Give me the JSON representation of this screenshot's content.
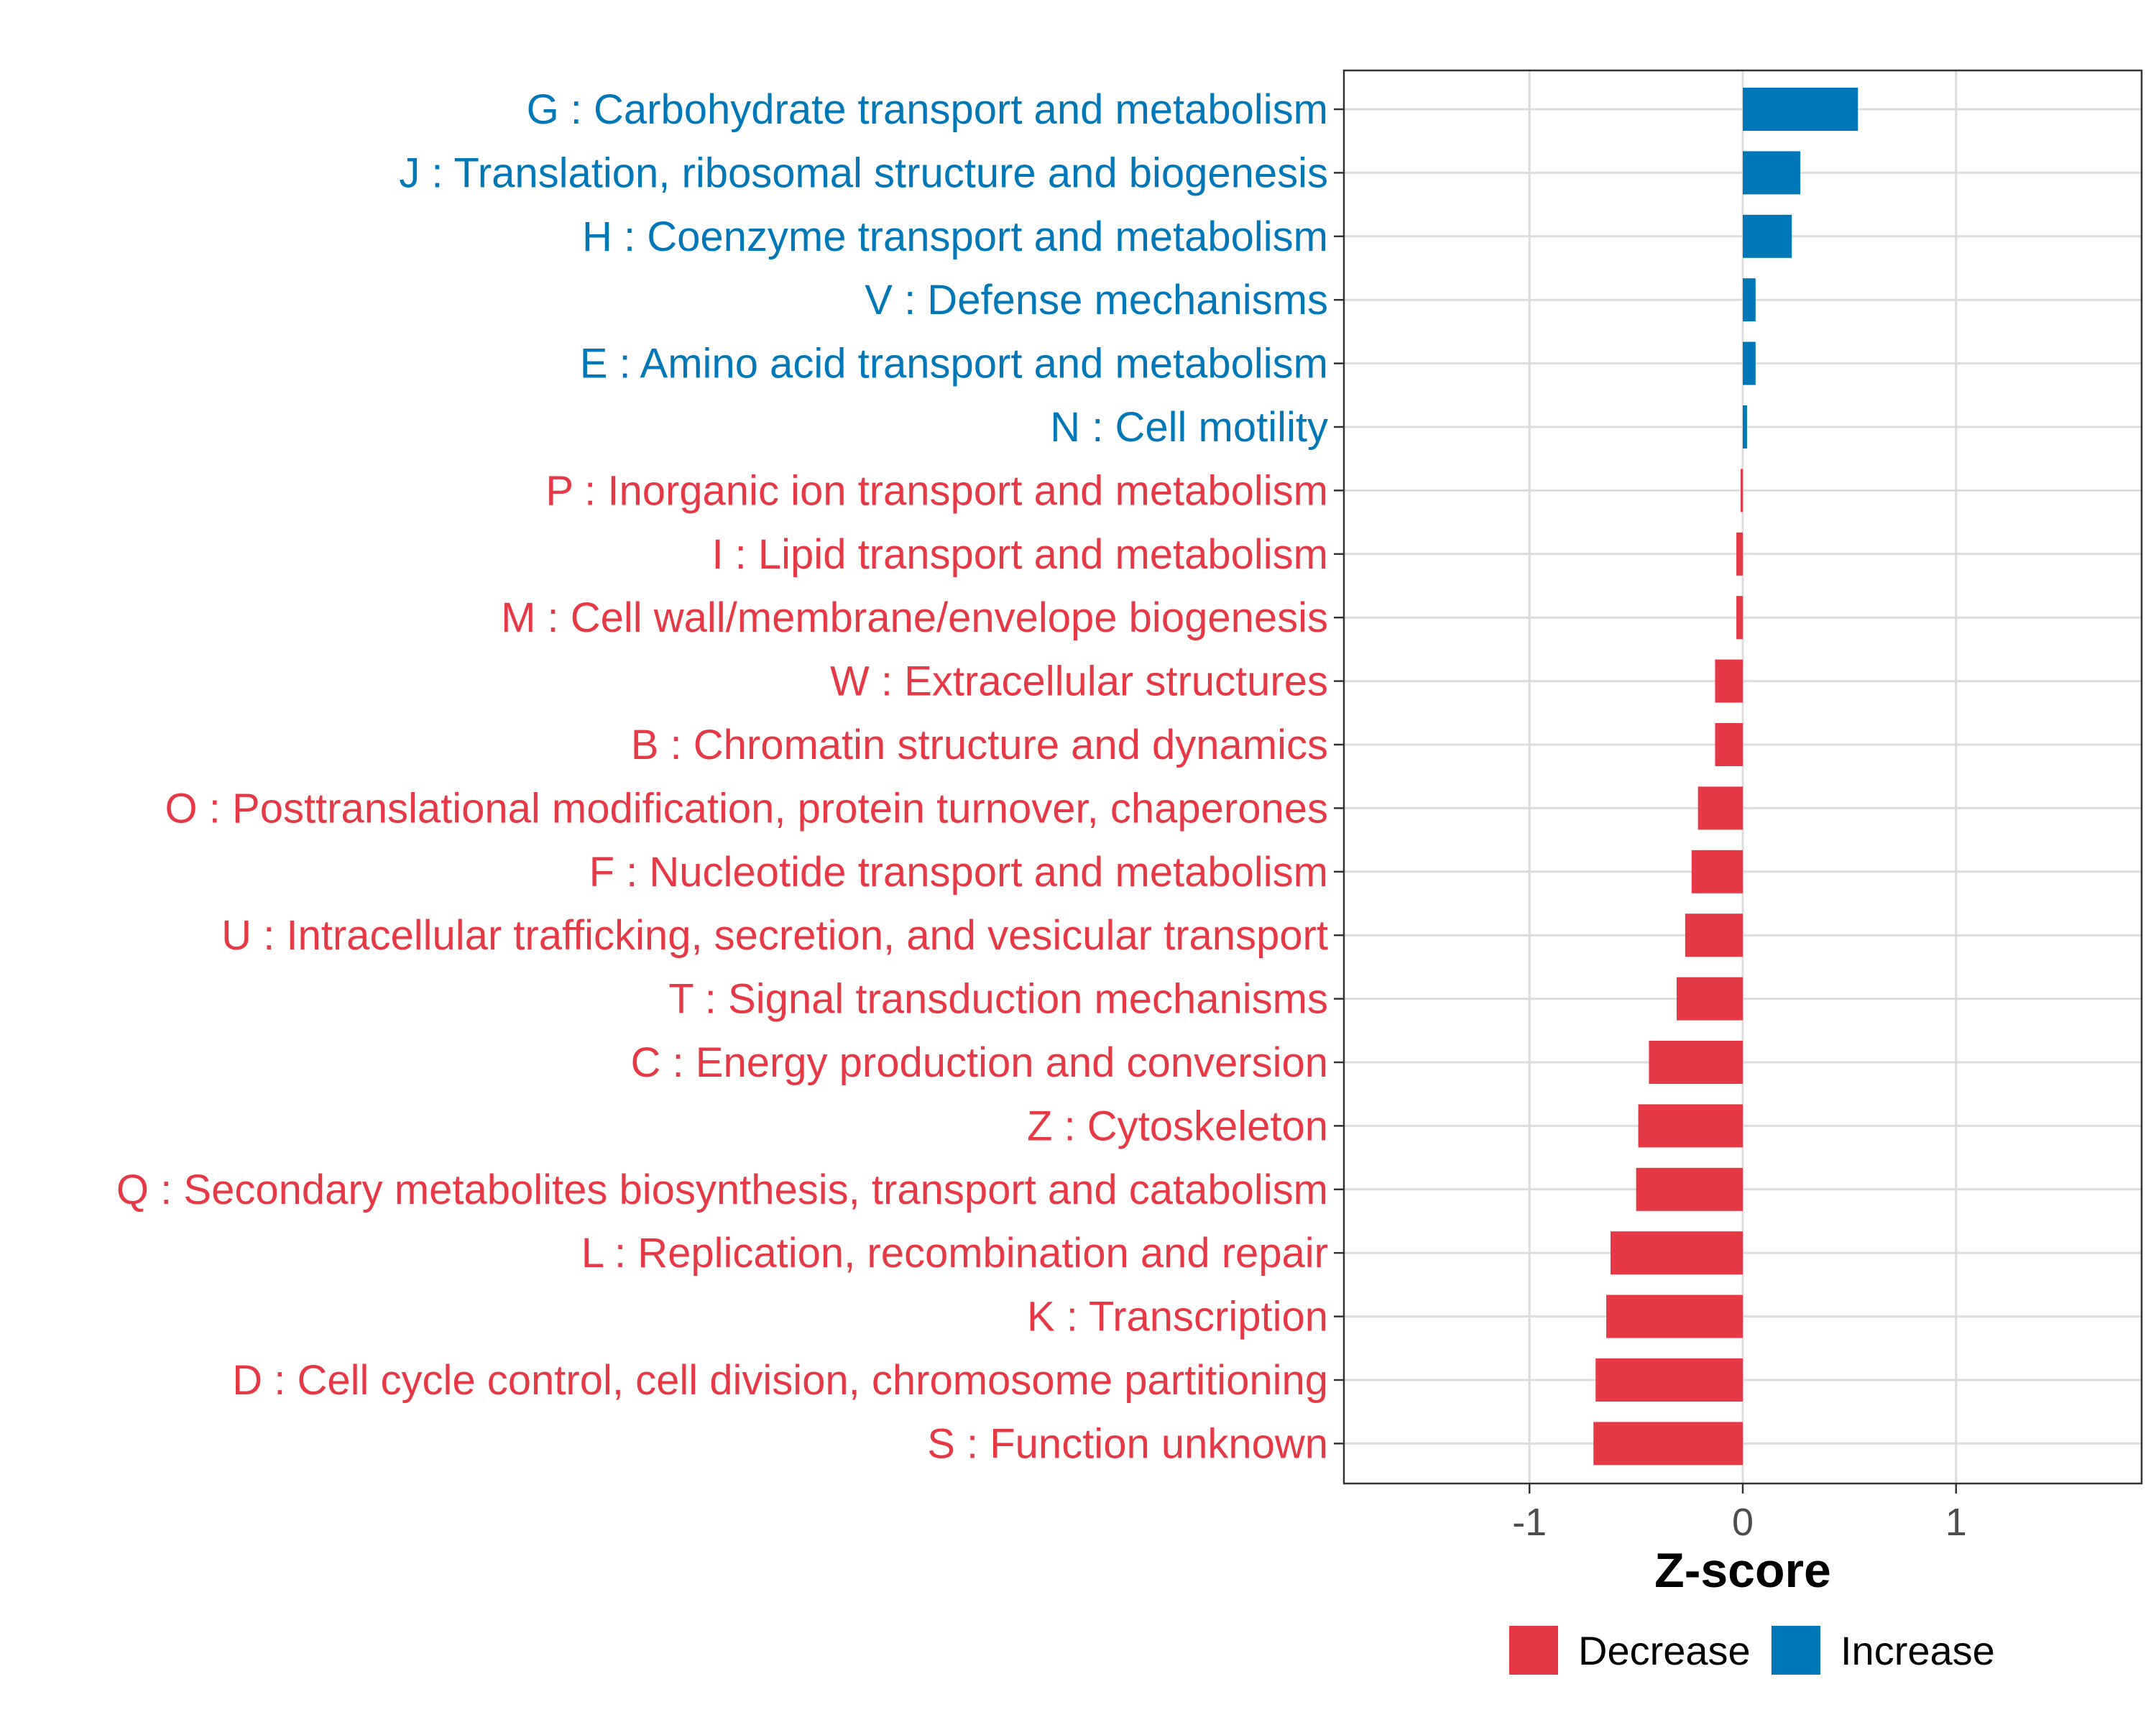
{
  "chart_data": {
    "type": "bar",
    "orientation": "horizontal",
    "title": "",
    "xlabel": "Z-score",
    "ylabel": "",
    "xlim": [
      -1.87,
      1.87
    ],
    "xticks": [
      "-1",
      "0",
      "1"
    ],
    "xtick_values": [
      -1,
      0,
      1
    ],
    "grid": true,
    "categories": [
      "G : Carbohydrate transport and metabolism",
      "J : Translation, ribosomal structure and biogenesis",
      "H : Coenzyme transport and metabolism",
      "V : Defense mechanisms",
      "E : Amino acid transport and metabolism",
      "N : Cell motility",
      "P : Inorganic ion transport and metabolism",
      "I : Lipid transport and metabolism",
      "M : Cell wall/membrane/envelope biogenesis",
      "W : Extracellular structures",
      "B : Chromatin structure and dynamics",
      "O : Posttranslational modification, protein turnover, chaperones",
      "F : Nucleotide transport and metabolism",
      "U : Intracellular trafficking, secretion, and vesicular transport",
      "T : Signal transduction mechanisms",
      "C : Energy production and conversion",
      "Z : Cytoskeleton",
      "Q : Secondary metabolites biosynthesis, transport and catabolism",
      "L : Replication, recombination and repair",
      "K : Transcription",
      "D : Cell cycle control, cell division, chromosome partitioning",
      "S : Function unknown"
    ],
    "values": [
      0.54,
      0.27,
      0.23,
      0.06,
      0.06,
      0.02,
      -0.01,
      -0.03,
      -0.03,
      -0.13,
      -0.13,
      -0.21,
      -0.24,
      -0.27,
      -0.31,
      -0.44,
      -0.49,
      -0.5,
      -0.62,
      -0.64,
      -0.69,
      -0.7
    ],
    "groups": [
      "Increase",
      "Increase",
      "Increase",
      "Increase",
      "Increase",
      "Increase",
      "Decrease",
      "Decrease",
      "Decrease",
      "Decrease",
      "Decrease",
      "Decrease",
      "Decrease",
      "Decrease",
      "Decrease",
      "Decrease",
      "Decrease",
      "Decrease",
      "Decrease",
      "Decrease",
      "Decrease",
      "Decrease"
    ],
    "legend": {
      "position": "bottom",
      "entries": [
        {
          "label": "Decrease",
          "color": "#E63946"
        },
        {
          "label": "Increase",
          "color": "#0077B6"
        }
      ]
    },
    "colors": {
      "Decrease": "#E63946",
      "Increase": "#0077B6"
    }
  }
}
